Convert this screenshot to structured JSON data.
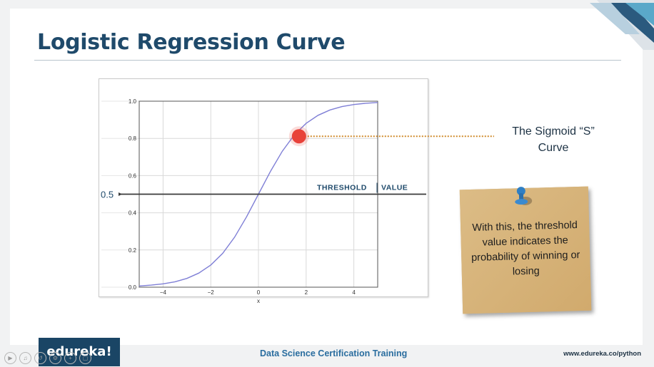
{
  "slide": {
    "title": "Logistic Regression Curve",
    "sigmoid_label_line1": "The Sigmoid “S”",
    "sigmoid_label_line2": "Curve",
    "threshold_marker": "0.5",
    "threshold_label_1": "THRESHOLD",
    "threshold_label_2": "VALUE",
    "note_text": "With this, the threshold value indicates the probability of winning or losing"
  },
  "footer": {
    "logo": "edureka!",
    "course": "Data Science Certification Training",
    "url": "www.edureka.co/python"
  },
  "colors": {
    "title": "#1f4a6b",
    "curve": "#7f7fd6",
    "point": "#e8423a",
    "note": "#d8b47a",
    "logo_bg": "#1a4565"
  },
  "chart_data": {
    "type": "line",
    "title": "",
    "xlabel": "x",
    "ylabel": "",
    "xlim": [
      -5,
      5
    ],
    "ylim": [
      0,
      1
    ],
    "xticks": [
      -4,
      -2,
      0,
      2,
      4
    ],
    "xtick_labels": [
      "−4",
      "−2",
      "0",
      "2",
      "4"
    ],
    "yticks": [
      0,
      0.2,
      0.4,
      0.6,
      0.8,
      1.0
    ],
    "ytick_labels": [
      "0.0",
      "0.2",
      "0.4",
      "0.6",
      "0.8",
      "1.0"
    ],
    "grid": true,
    "series": [
      {
        "x": [
          -5,
          -4.5,
          -4,
          -3.5,
          -3,
          -2.5,
          -2,
          -1.5,
          -1,
          -0.5,
          0,
          0.5,
          1,
          1.5,
          2,
          2.5,
          3,
          3.5,
          4,
          4.5,
          5
        ],
        "y": [
          0.0067,
          0.011,
          0.018,
          0.029,
          0.047,
          0.076,
          0.119,
          0.182,
          0.269,
          0.378,
          0.5,
          0.622,
          0.731,
          0.818,
          0.881,
          0.924,
          0.953,
          0.971,
          0.982,
          0.989,
          0.993
        ]
      }
    ],
    "highlight_point": {
      "x": 1.7,
      "y": 0.8
    },
    "threshold": 0.5
  }
}
